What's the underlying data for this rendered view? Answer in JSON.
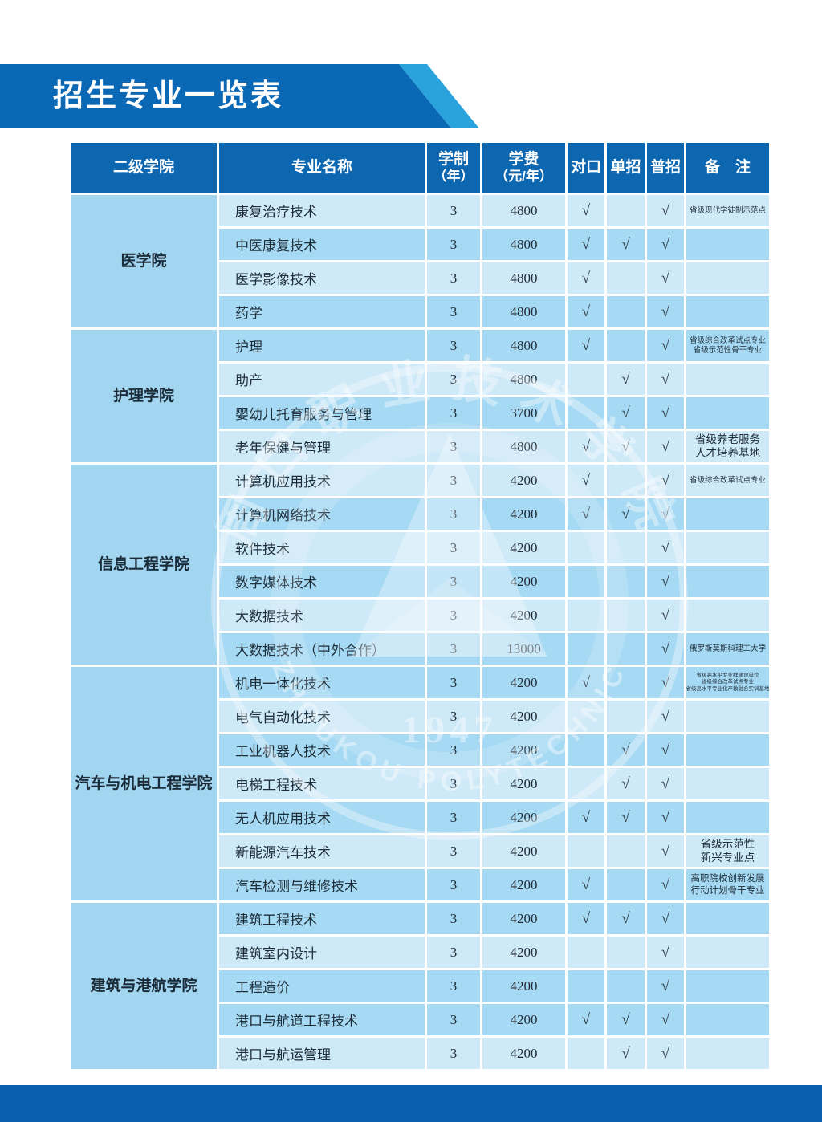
{
  "page": {
    "title": "招生专业一览表"
  },
  "colors": {
    "primary_blue": "#0c66b0",
    "banner_blue": "#0a68b4",
    "banner_accent_light_blue": "#2aa3dc",
    "footer_blue": "#095fab",
    "row_light": "#cee9f8",
    "row_medium": "#a6d9f3",
    "college_cell_blue": "#a2d5f0"
  },
  "table": {
    "check_symbol": "√",
    "headers": [
      {
        "lines": [
          "二级学院"
        ]
      },
      {
        "lines": [
          "专业名称"
        ]
      },
      {
        "lines": [
          "学制",
          "（年）"
        ]
      },
      {
        "lines": [
          "学费",
          "（元/年）"
        ]
      },
      {
        "lines": [
          "对口"
        ]
      },
      {
        "lines": [
          "单招"
        ]
      },
      {
        "lines": [
          "普招"
        ]
      },
      {
        "lines": [
          "备　注"
        ]
      }
    ],
    "sections": [
      {
        "college_lines": [
          "医学院"
        ],
        "rows": [
          {
            "name": "康复治疗技术",
            "years": "3",
            "tuition": "4800",
            "duikou": true,
            "danzhao": false,
            "puzhao": true,
            "remark": [
              "省级现代学徒制示范点"
            ],
            "shade": "light"
          },
          {
            "name": "中医康复技术",
            "years": "3",
            "tuition": "4800",
            "duikou": true,
            "danzhao": true,
            "puzhao": true,
            "remark": [],
            "shade": "medium"
          },
          {
            "name": "医学影像技术",
            "years": "3",
            "tuition": "4800",
            "duikou": true,
            "danzhao": false,
            "puzhao": true,
            "remark": [],
            "shade": "light"
          },
          {
            "name": "药学",
            "years": "3",
            "tuition": "4800",
            "duikou": true,
            "danzhao": false,
            "puzhao": true,
            "remark": [],
            "shade": "medium"
          }
        ]
      },
      {
        "college_lines": [
          "护理学院"
        ],
        "rows": [
          {
            "name": "护理",
            "years": "3",
            "tuition": "4800",
            "duikou": true,
            "danzhao": false,
            "puzhao": true,
            "remark": [
              "省级综合改革试点专业",
              "省级示范性骨干专业"
            ],
            "shade": "medium"
          },
          {
            "name": "助产",
            "years": "3",
            "tuition": "4800",
            "duikou": false,
            "danzhao": true,
            "puzhao": true,
            "remark": [],
            "shade": "light"
          },
          {
            "name": "婴幼儿托育服务与管理",
            "years": "3",
            "tuition": "3700",
            "duikou": false,
            "danzhao": true,
            "puzhao": true,
            "remark": [],
            "shade": "medium"
          },
          {
            "name": "老年保健与管理",
            "years": "3",
            "tuition": "4800",
            "duikou": true,
            "danzhao": true,
            "puzhao": true,
            "remark": [
              "省级养老服务",
              "人才培养基地"
            ],
            "shade": "light"
          }
        ]
      },
      {
        "college_lines": [
          "信息工程学院"
        ],
        "rows": [
          {
            "name": "计算机应用技术",
            "years": "3",
            "tuition": "4200",
            "duikou": true,
            "danzhao": false,
            "puzhao": true,
            "remark": [
              "省级综合改革试点专业"
            ],
            "shade": "light"
          },
          {
            "name": "计算机网络技术",
            "years": "3",
            "tuition": "4200",
            "duikou": true,
            "danzhao": true,
            "puzhao": true,
            "remark": [],
            "shade": "medium"
          },
          {
            "name": "软件技术",
            "years": "3",
            "tuition": "4200",
            "duikou": false,
            "danzhao": false,
            "puzhao": true,
            "remark": [],
            "shade": "light"
          },
          {
            "name": "数字媒体技术",
            "years": "3",
            "tuition": "4200",
            "duikou": false,
            "danzhao": false,
            "puzhao": true,
            "remark": [],
            "shade": "medium"
          },
          {
            "name": "大数据技术",
            "years": "3",
            "tuition": "4200",
            "duikou": false,
            "danzhao": false,
            "puzhao": true,
            "remark": [],
            "shade": "light"
          },
          {
            "name": "大数据技术（中外合作）",
            "years": "3",
            "tuition": "13000",
            "duikou": false,
            "danzhao": false,
            "puzhao": true,
            "remark": [
              "俄罗斯莫斯科理工大学"
            ],
            "shade": "medium"
          }
        ]
      },
      {
        "college_lines": [
          "汽车与机电",
          "工程学院"
        ],
        "rows": [
          {
            "name": "机电一体化技术",
            "years": "3",
            "tuition": "4200",
            "duikou": true,
            "danzhao": false,
            "puzhao": true,
            "remark": [
              "省级高水平专业群建设单位",
              "省级综合改革试点专业",
              "省级高水平专业化产教融合实训基地"
            ],
            "shade": "medium"
          },
          {
            "name": "电气自动化技术",
            "years": "3",
            "tuition": "4200",
            "duikou": false,
            "danzhao": false,
            "puzhao": true,
            "remark": [],
            "shade": "light"
          },
          {
            "name": "工业机器人技术",
            "years": "3",
            "tuition": "4200",
            "duikou": false,
            "danzhao": true,
            "puzhao": true,
            "remark": [],
            "shade": "medium"
          },
          {
            "name": "电梯工程技术",
            "years": "3",
            "tuition": "4200",
            "duikou": false,
            "danzhao": true,
            "puzhao": true,
            "remark": [],
            "shade": "light"
          },
          {
            "name": "无人机应用技术",
            "years": "3",
            "tuition": "4200",
            "duikou": true,
            "danzhao": true,
            "puzhao": true,
            "remark": [],
            "shade": "medium"
          },
          {
            "name": "新能源汽车技术",
            "years": "3",
            "tuition": "4200",
            "duikou": false,
            "danzhao": false,
            "puzhao": true,
            "remark": [
              "省级示范性",
              "新兴专业点"
            ],
            "shade": "light"
          },
          {
            "name": "汽车检测与维修技术",
            "years": "3",
            "tuition": "4200",
            "duikou": true,
            "danzhao": false,
            "puzhao": true,
            "remark": [
              "高职院校创新发展",
              "行动计划骨干专业"
            ],
            "shade": "medium"
          }
        ]
      },
      {
        "college_lines": [
          "建筑与港航学院"
        ],
        "rows": [
          {
            "name": "建筑工程技术",
            "years": "3",
            "tuition": "4200",
            "duikou": true,
            "danzhao": true,
            "puzhao": true,
            "remark": [],
            "shade": "medium"
          },
          {
            "name": "建筑室内设计",
            "years": "3",
            "tuition": "4200",
            "duikou": false,
            "danzhao": false,
            "puzhao": true,
            "remark": [],
            "shade": "light"
          },
          {
            "name": "工程造价",
            "years": "3",
            "tuition": "4200",
            "duikou": false,
            "danzhao": false,
            "puzhao": true,
            "remark": [],
            "shade": "medium"
          },
          {
            "name": "港口与航道工程技术",
            "years": "3",
            "tuition": "4200",
            "duikou": true,
            "danzhao": true,
            "puzhao": true,
            "remark": [],
            "shade": "medium"
          },
          {
            "name": "港口与航运管理",
            "years": "3",
            "tuition": "4200",
            "duikou": false,
            "danzhao": true,
            "puzhao": true,
            "remark": [],
            "shade": "light"
          }
        ]
      }
    ]
  },
  "watermark": {
    "year": "1947",
    "latin_ring_text": "ZHOUKOU POLYTECHNIC",
    "cjk_ring_text": "周口职业技术学院"
  }
}
